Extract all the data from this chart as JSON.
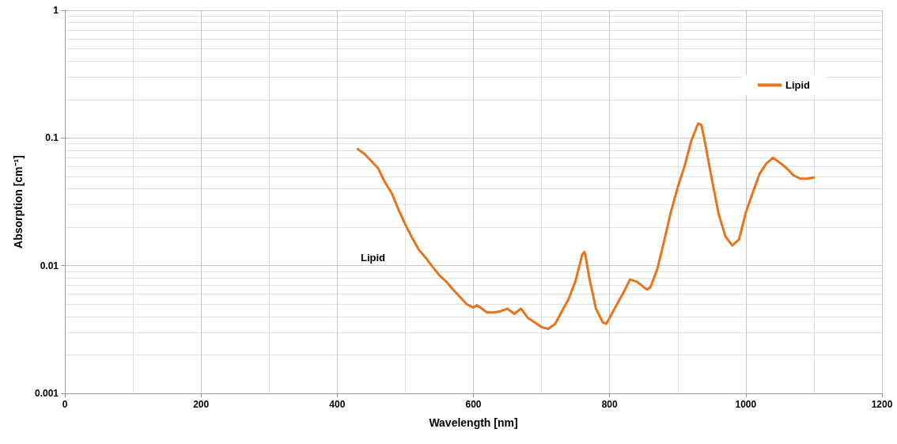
{
  "chart_data": {
    "type": "line",
    "xlabel": "Wavelength [nm]",
    "ylabel": "Absorption [cm⁻¹]",
    "log": "y",
    "grid": true,
    "legend": "top right",
    "marker": "none",
    "line_style": "solid",
    "xlim": [
      0,
      1200
    ],
    "xticks": [
      0,
      200,
      400,
      600,
      800,
      1000,
      1200
    ],
    "ylim": [
      0.001,
      1
    ],
    "yticks": [
      0.001,
      0.01,
      0.1,
      1
    ],
    "annotations": [
      "Lipid"
    ],
    "series": [
      {
        "name": "Lipid",
        "color": "#e8731a",
        "x": [
          430,
          440,
          450,
          460,
          470,
          480,
          490,
          500,
          510,
          520,
          530,
          540,
          550,
          560,
          570,
          580,
          590,
          600,
          605,
          610,
          620,
          630,
          640,
          650,
          660,
          670,
          680,
          690,
          700,
          710,
          720,
          730,
          740,
          750,
          760,
          763,
          765,
          770,
          780,
          790,
          795,
          800,
          810,
          820,
          830,
          840,
          850,
          855,
          860,
          870,
          880,
          890,
          900,
          910,
          920,
          930,
          935,
          940,
          950,
          960,
          970,
          980,
          990,
          1000,
          1010,
          1020,
          1030,
          1040,
          1050,
          1060,
          1070,
          1080,
          1090,
          1100
        ],
        "values": [
          0.082,
          0.075,
          0.066,
          0.058,
          0.045,
          0.037,
          0.0275,
          0.021,
          0.0165,
          0.0133,
          0.0115,
          0.0098,
          0.0084,
          0.0075,
          0.0065,
          0.0057,
          0.005,
          0.0047,
          0.0049,
          0.0047,
          0.0043,
          0.0043,
          0.0044,
          0.0046,
          0.0042,
          0.0046,
          0.0039,
          0.0036,
          0.0033,
          0.0032,
          0.0035,
          0.0044,
          0.0055,
          0.0076,
          0.0123,
          0.0128,
          0.0117,
          0.0081,
          0.0046,
          0.0036,
          0.0035,
          0.0039,
          0.0049,
          0.0061,
          0.0078,
          0.0075,
          0.0068,
          0.0065,
          0.0068,
          0.0094,
          0.0155,
          0.0263,
          0.041,
          0.06,
          0.095,
          0.13,
          0.126,
          0.093,
          0.048,
          0.0256,
          0.017,
          0.0144,
          0.016,
          0.026,
          0.037,
          0.052,
          0.063,
          0.07,
          0.064,
          0.058,
          0.051,
          0.048,
          0.048,
          0.049
        ]
      }
    ]
  }
}
